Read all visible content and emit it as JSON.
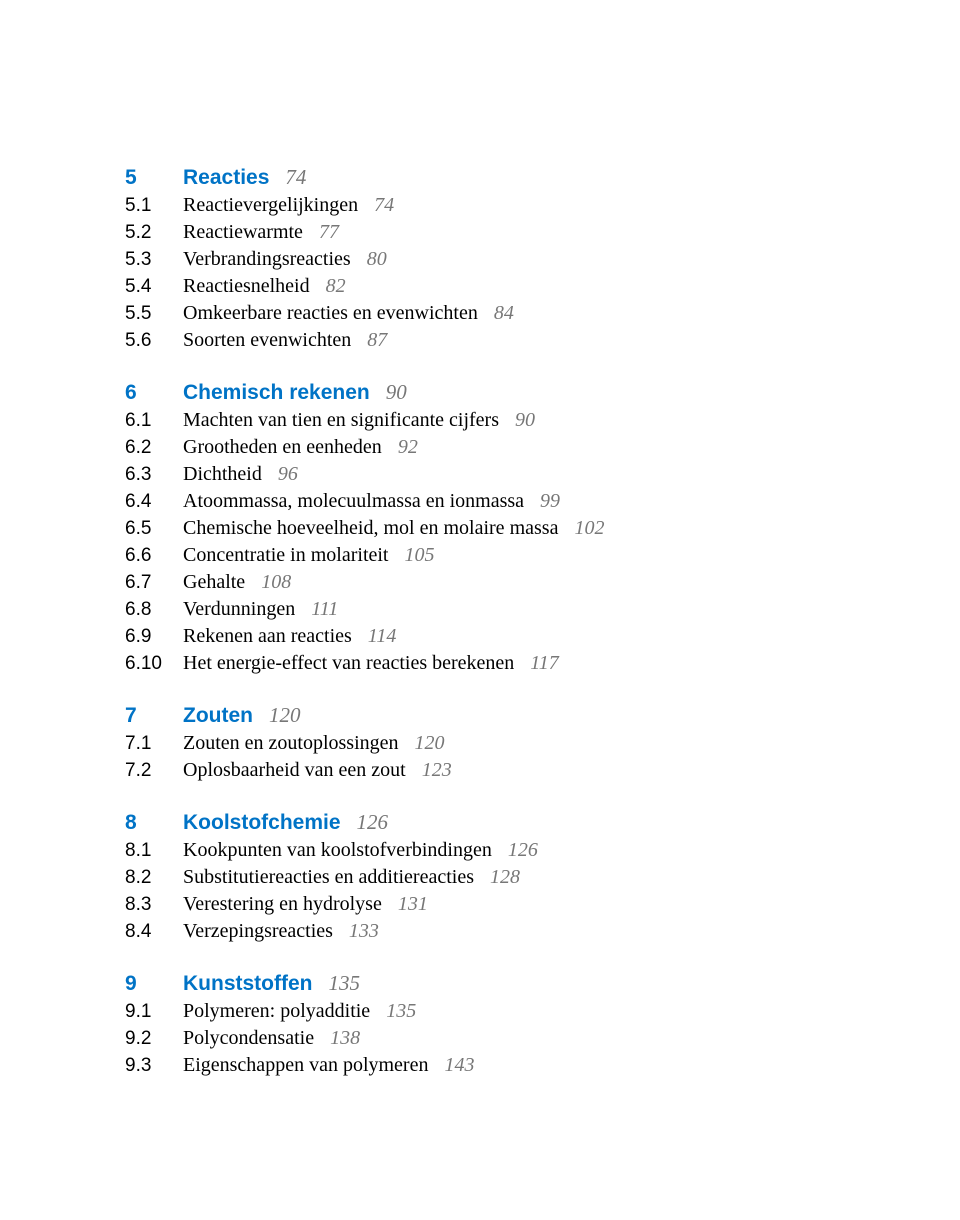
{
  "colors": {
    "blue": "#0073c6",
    "black": "#000000",
    "page_color": "#777777"
  },
  "chapters": [
    {
      "num": "5",
      "title": "Reacties",
      "page": "74",
      "subs": [
        {
          "num": "5.1",
          "title": "Reactievergelijkingen",
          "page": "74"
        },
        {
          "num": "5.2",
          "title": "Reactiewarmte",
          "page": "77"
        },
        {
          "num": "5.3",
          "title": "Verbrandingsreacties",
          "page": "80"
        },
        {
          "num": "5.4",
          "title": "Reactiesnelheid",
          "page": "82"
        },
        {
          "num": "5.5",
          "title": "Omkeerbare reacties en evenwichten",
          "page": "84"
        },
        {
          "num": "5.6",
          "title": "Soorten evenwichten",
          "page": "87"
        }
      ]
    },
    {
      "num": "6",
      "title": "Chemisch rekenen",
      "page": "90",
      "subs": [
        {
          "num": "6.1",
          "title": "Machten van tien en significante cijfers",
          "page": "90"
        },
        {
          "num": "6.2",
          "title": "Grootheden en eenheden",
          "page": "92"
        },
        {
          "num": "6.3",
          "title": "Dichtheid",
          "page": "96"
        },
        {
          "num": "6.4",
          "title": "Atoommassa, molecuulmassa en ionmassa",
          "page": "99"
        },
        {
          "num": "6.5",
          "title": "Chemische hoeveelheid, mol en molaire massa",
          "page": "102"
        },
        {
          "num": "6.6",
          "title": "Concentratie in molariteit",
          "page": "105"
        },
        {
          "num": "6.7",
          "title": "Gehalte",
          "page": "108"
        },
        {
          "num": "6.8",
          "title": "Verdunningen",
          "page": "111"
        },
        {
          "num": "6.9",
          "title": "Rekenen aan reacties",
          "page": "114"
        },
        {
          "num": "6.10",
          "title": "Het energie-effect van reacties berekenen",
          "page": "117"
        }
      ]
    },
    {
      "num": "7",
      "title": "Zouten",
      "page": "120",
      "subs": [
        {
          "num": "7.1",
          "title": "Zouten en zoutoplossingen",
          "page": "120"
        },
        {
          "num": "7.2",
          "title": "Oplosbaarheid van een zout",
          "page": "123"
        }
      ]
    },
    {
      "num": "8",
      "title": "Koolstofchemie",
      "page": "126",
      "subs": [
        {
          "num": "8.1",
          "title": "Kookpunten van koolstofverbindingen",
          "page": "126"
        },
        {
          "num": "8.2",
          "title": "Substitutiereacties en additiereacties",
          "page": "128"
        },
        {
          "num": "8.3",
          "title": "Verestering en hydrolyse",
          "page": "131"
        },
        {
          "num": "8.4",
          "title": "Verzepingsreacties",
          "page": "133"
        }
      ]
    },
    {
      "num": "9",
      "title": "Kunststoffen",
      "page": "135",
      "subs": [
        {
          "num": "9.1",
          "title": "Polymeren: polyadditie",
          "page": "135"
        },
        {
          "num": "9.2",
          "title": "Polycondensatie",
          "page": "138"
        },
        {
          "num": "9.3",
          "title": "Eigenschappen van polymeren",
          "page": "143"
        }
      ]
    }
  ]
}
